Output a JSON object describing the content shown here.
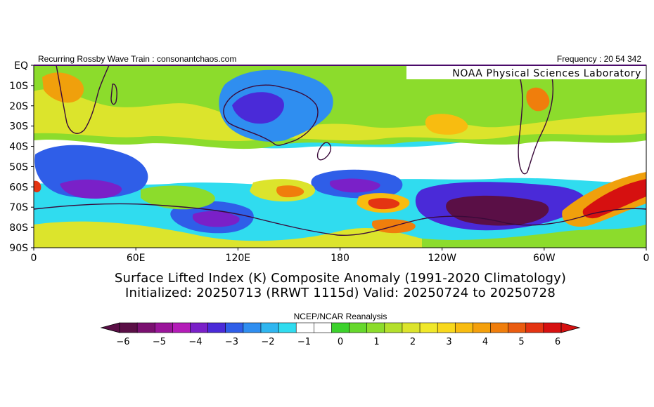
{
  "header": {
    "left_text": "Recurring Rossby Wave Train : consonantchaos.com",
    "right_text": "Frequency : 20 54 342",
    "brand": "NOAA Physical Sciences Laboratory"
  },
  "map": {
    "lat_labels": [
      "EQ",
      "10S",
      "20S",
      "30S",
      "40S",
      "50S",
      "60S",
      "70S",
      "80S",
      "90S"
    ],
    "lon_labels": [
      "0",
      "60E",
      "120E",
      "180",
      "120W",
      "60W",
      "0"
    ],
    "colors": {
      "neg6": "#5a0f46",
      "neg5": "#8e1f90",
      "neg4": "#6a1fb4",
      "neg3": "#3f3fd4",
      "neg2": "#2f7ee8",
      "neg1": "#23c9e8",
      "zero": "#ffffff",
      "pos1": "#3fd03a",
      "pos2": "#8fd620",
      "pos3": "#dfe02a",
      "pos4": "#f2a90e",
      "pos5": "#ef6e14",
      "pos6": "#e3201c"
    }
  },
  "titles": {
    "line1": "Surface Lifted Index (K) Composite Anomaly (1991-2020 Climatology)",
    "line2": "Initialized: 20250713 (RRWT 1115d) Valid: 20250724 to 20250728"
  },
  "colorbar": {
    "label": "NCEP/NCAR Reanalysis",
    "ticks": [
      "-6",
      "-5",
      "-4",
      "-3",
      "-2",
      "-1",
      "0",
      "1",
      "2",
      "3",
      "4",
      "5",
      "6"
    ],
    "colors": [
      "#5a0f46",
      "#7a1070",
      "#9a159a",
      "#b41cb8",
      "#7a20c8",
      "#4a2ad8",
      "#2f5ee8",
      "#2f8ef0",
      "#2fb6f0",
      "#30dcef",
      "#ffffff",
      "#ffffff",
      "#3cd22c",
      "#66d82c",
      "#8cdc2c",
      "#b4e02c",
      "#dce42c",
      "#f0e82a",
      "#f8d81c",
      "#f8bc10",
      "#f4a00c",
      "#f07e0c",
      "#ea5c10",
      "#e43412",
      "#d61010"
    ]
  }
}
